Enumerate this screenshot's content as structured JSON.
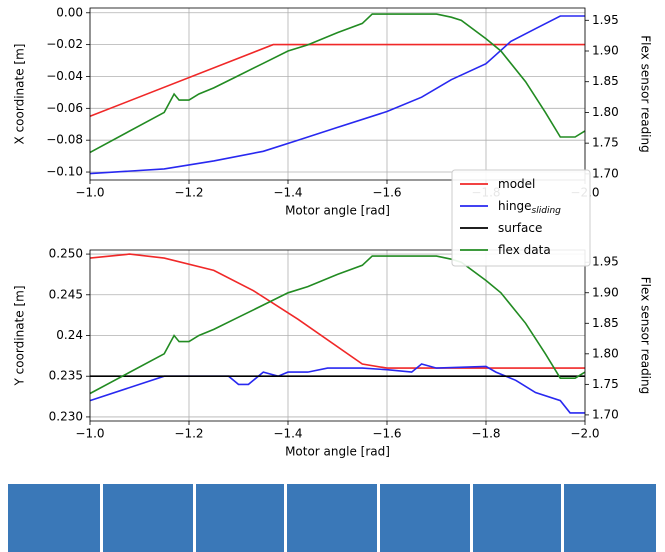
{
  "chart_data": [
    {
      "type": "line",
      "xlabel": "Motor angle [rad]",
      "ylabel": "X coordinate [m]",
      "y2label": "Flex sensor reading",
      "xlim": [
        -1.0,
        -2.0
      ],
      "xticks": [
        {
          "value": -1.0,
          "label": "−1.0"
        },
        {
          "value": -1.2,
          "label": "−1.2"
        },
        {
          "value": -1.4,
          "label": "−1.4"
        },
        {
          "value": -1.6,
          "label": "−1.6"
        },
        {
          "value": -1.8,
          "label": "−1.8"
        },
        {
          "value": -2.0,
          "label": "−2.0"
        }
      ],
      "ylim": [
        -0.105,
        0.003
      ],
      "yticks": [
        {
          "value": 0.0,
          "label": "0.00"
        },
        {
          "value": -0.02,
          "label": "−0.02"
        },
        {
          "value": -0.04,
          "label": "−0.04"
        },
        {
          "value": -0.06,
          "label": "−0.06"
        },
        {
          "value": -0.08,
          "label": "−0.08"
        },
        {
          "value": -0.1,
          "label": "−0.10"
        }
      ],
      "y2lim": [
        1.69,
        1.97
      ],
      "y2ticks": [
        {
          "value": 1.7,
          "label": "1.70"
        },
        {
          "value": 1.75,
          "label": "1.75"
        },
        {
          "value": 1.8,
          "label": "1.80"
        },
        {
          "value": 1.85,
          "label": "1.85"
        },
        {
          "value": 1.9,
          "label": "1.90"
        },
        {
          "value": 1.95,
          "label": "1.95"
        }
      ],
      "grid": true,
      "series": [
        {
          "name": "model",
          "color": "#f02828",
          "x": [
            -1.0,
            -1.37,
            -1.4,
            -2.0
          ],
          "values": [
            -0.065,
            -0.02,
            -0.02,
            -0.02
          ]
        },
        {
          "name": "hinge",
          "subscript": "sliding",
          "color": "#2828f0",
          "x": [
            -1.0,
            -1.15,
            -1.25,
            -1.35,
            -1.42,
            -1.5,
            -1.6,
            -1.67,
            -1.73,
            -1.8,
            -1.85,
            -1.9,
            -1.95,
            -2.0
          ],
          "values": [
            -0.101,
            -0.098,
            -0.093,
            -0.087,
            -0.08,
            -0.072,
            -0.062,
            -0.053,
            -0.042,
            -0.032,
            -0.018,
            -0.01,
            -0.002,
            -0.002
          ]
        },
        {
          "name": "flex data",
          "color": "#228b22",
          "axis": "y2",
          "x": [
            -1.0,
            -1.15,
            -1.17,
            -1.18,
            -1.2,
            -1.22,
            -1.25,
            -1.3,
            -1.35,
            -1.4,
            -1.44,
            -1.5,
            -1.55,
            -1.57,
            -1.7,
            -1.73,
            -1.75,
            -1.8,
            -1.83,
            -1.88,
            -1.92,
            -1.95,
            -1.98,
            -2.0
          ],
          "values": [
            1.735,
            1.8,
            1.83,
            1.82,
            1.82,
            1.83,
            1.84,
            1.86,
            1.88,
            1.9,
            1.91,
            1.93,
            1.945,
            1.96,
            1.96,
            1.955,
            1.95,
            1.92,
            1.9,
            1.85,
            1.8,
            1.76,
            1.76,
            1.77
          ]
        }
      ]
    },
    {
      "type": "line",
      "xlabel": "Motor angle [rad]",
      "ylabel": "Y coordinate [m]",
      "y2label": "Flex sensor reading",
      "xlim": [
        -1.0,
        -2.0
      ],
      "xticks": [
        {
          "value": -1.0,
          "label": "−1.0"
        },
        {
          "value": -1.2,
          "label": "−1.2"
        },
        {
          "value": -1.4,
          "label": "−1.4"
        },
        {
          "value": -1.6,
          "label": "−1.6"
        },
        {
          "value": -1.8,
          "label": "−1.8"
        },
        {
          "value": -2.0,
          "label": "−2.0"
        }
      ],
      "ylim": [
        0.2295,
        0.2505
      ],
      "yticks": [
        {
          "value": 0.23,
          "label": "0.230"
        },
        0.235,
        0.24,
        0.245,
        {
          "value": 0.25,
          "label": "0.250"
        }
      ],
      "y2lim": [
        1.69,
        1.97
      ],
      "y2ticks": [
        {
          "value": 1.7,
          "label": "1.70"
        },
        {
          "value": 1.75,
          "label": "1.75"
        },
        {
          "value": 1.8,
          "label": "1.80"
        },
        {
          "value": 1.85,
          "label": "1.85"
        },
        {
          "value": 1.9,
          "label": "1.90"
        },
        {
          "value": 1.95,
          "label": "1.95"
        }
      ],
      "grid": true,
      "legend": "upper right",
      "series": [
        {
          "name": "model",
          "color": "#f02828",
          "x": [
            -1.0,
            -1.08,
            -1.15,
            -1.25,
            -1.33,
            -1.42,
            -1.55,
            -1.6,
            -2.0
          ],
          "values": [
            0.2495,
            0.25,
            0.2495,
            0.248,
            0.2455,
            0.242,
            0.2365,
            0.236,
            0.236
          ]
        },
        {
          "name": "hinge",
          "subscript": "sliding",
          "color": "#2828f0",
          "x": [
            -1.0,
            -1.15,
            -1.28,
            -1.3,
            -1.32,
            -1.35,
            -1.38,
            -1.4,
            -1.44,
            -1.48,
            -1.5,
            -1.55,
            -1.6,
            -1.65,
            -1.67,
            -1.7,
            -1.8,
            -1.82,
            -1.86,
            -1.9,
            -1.95,
            -1.97,
            -2.0
          ],
          "values": [
            0.232,
            0.235,
            0.235,
            0.234,
            0.234,
            0.2355,
            0.235,
            0.2355,
            0.2355,
            0.236,
            0.236,
            0.236,
            0.2358,
            0.2355,
            0.2365,
            0.236,
            0.2362,
            0.2355,
            0.2345,
            0.233,
            0.232,
            0.2305,
            0.2305
          ]
        },
        {
          "name": "surface",
          "color": "#000000",
          "x": [
            -1.0,
            -2.0
          ],
          "values": [
            0.235,
            0.235
          ]
        },
        {
          "name": "flex data",
          "color": "#228b22",
          "axis": "y2",
          "x": [
            -1.0,
            -1.15,
            -1.17,
            -1.18,
            -1.2,
            -1.22,
            -1.25,
            -1.3,
            -1.35,
            -1.4,
            -1.44,
            -1.5,
            -1.55,
            -1.57,
            -1.7,
            -1.73,
            -1.75,
            -1.8,
            -1.83,
            -1.88,
            -1.92,
            -1.95,
            -1.98,
            -2.0
          ],
          "values": [
            1.735,
            1.8,
            1.83,
            1.82,
            1.82,
            1.83,
            1.84,
            1.86,
            1.88,
            1.9,
            1.91,
            1.93,
            1.945,
            1.96,
            1.96,
            1.955,
            1.95,
            1.92,
            1.9,
            1.85,
            1.8,
            1.76,
            1.76,
            1.77
          ]
        }
      ]
    }
  ]
}
